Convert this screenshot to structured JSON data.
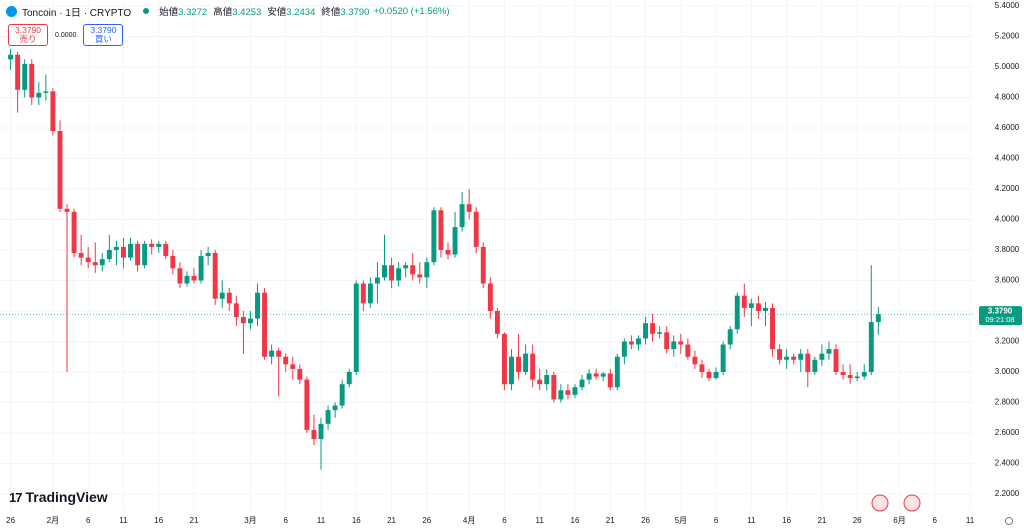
{
  "header": {
    "symbol": "Toncoin · 1日 · CRYPTO",
    "ohlc": [
      {
        "label": "始値",
        "value": "3.3272"
      },
      {
        "label": "高値",
        "value": "3.4253"
      },
      {
        "label": "安値",
        "value": "3.2434"
      },
      {
        "label": "終値",
        "value": "3.3790"
      }
    ],
    "change": "+0.0520 (+1.56%)"
  },
  "trade_buttons": {
    "sell": {
      "price": "3.3790",
      "label": "売り"
    },
    "spread": "0.0000",
    "buy": {
      "price": "3.3790",
      "label": "買い"
    }
  },
  "brand": "TradingView",
  "chart_data": {
    "type": "candlestick",
    "colors": {
      "up": "#089981",
      "down": "#f23645"
    },
    "x": [
      0,
      1,
      2,
      3,
      4,
      5,
      6,
      7,
      8,
      9,
      10,
      11,
      12,
      13,
      14,
      15,
      16,
      17,
      18,
      19,
      20,
      21,
      22,
      23,
      24,
      25,
      26,
      27,
      28,
      29,
      30,
      31,
      32,
      33,
      34,
      35,
      36,
      37,
      38,
      39,
      40,
      41,
      42,
      43,
      44,
      45,
      46,
      47,
      48,
      49,
      50,
      51,
      52,
      53,
      54,
      55,
      56,
      57,
      58,
      59,
      60,
      61,
      62,
      63,
      64,
      65,
      66,
      67,
      68,
      69,
      70,
      71,
      72,
      73,
      74,
      75,
      76,
      77,
      78,
      79,
      80,
      81,
      82,
      83,
      84,
      85,
      86,
      87,
      88,
      89,
      90,
      91,
      92,
      93,
      94,
      95,
      96,
      97,
      98,
      99,
      100,
      101,
      102,
      103,
      104,
      105,
      106,
      107,
      108,
      109,
      110,
      111,
      112,
      113,
      114,
      115,
      116,
      117,
      118,
      119,
      120,
      121,
      122,
      123
    ],
    "open": [
      5.05,
      5.08,
      4.85,
      5.02,
      4.8,
      4.83,
      4.84,
      4.58,
      4.07,
      4.05,
      3.78,
      3.75,
      3.72,
      3.7,
      3.74,
      3.8,
      3.82,
      3.75,
      3.84,
      3.7,
      3.84,
      3.82,
      3.84,
      3.76,
      3.68,
      3.58,
      3.63,
      3.6,
      3.76,
      3.78,
      3.48,
      3.52,
      3.45,
      3.36,
      3.32,
      3.35,
      3.52,
      3.1,
      3.14,
      3.1,
      3.05,
      3.02,
      2.95,
      2.62,
      2.56,
      2.66,
      2.75,
      2.78,
      2.92,
      3.0,
      3.58,
      3.45,
      3.58,
      3.62,
      3.7,
      3.6,
      3.68,
      3.7,
      3.64,
      3.62,
      3.72,
      4.06,
      3.8,
      3.77,
      3.95,
      4.1,
      4.05,
      3.82,
      3.58,
      3.4,
      3.25,
      2.92,
      3.1,
      3.0,
      3.12,
      2.95,
      2.92,
      2.98,
      2.82,
      2.88,
      2.85,
      2.9,
      2.95,
      2.99,
      2.97,
      2.99,
      2.9,
      3.1,
      3.2,
      3.18,
      3.22,
      3.32,
      3.25,
      3.26,
      3.15,
      3.2,
      3.18,
      3.1,
      3.05,
      3.0,
      2.96,
      3.0,
      3.18,
      3.28,
      3.5,
      3.42,
      3.45,
      3.4,
      3.42,
      3.15,
      3.08,
      3.1,
      3.08,
      3.12,
      3.0,
      3.08,
      3.12,
      3.15,
      3.0,
      2.98,
      2.96,
      2.97,
      3.0,
      3.3272
    ],
    "high": [
      5.12,
      5.1,
      5.05,
      5.05,
      4.9,
      4.95,
      4.86,
      4.65,
      4.1,
      4.07,
      3.9,
      3.82,
      3.85,
      3.78,
      3.9,
      3.86,
      3.88,
      3.88,
      3.86,
      3.86,
      3.87,
      3.86,
      3.86,
      3.8,
      3.72,
      3.66,
      3.68,
      3.8,
      3.82,
      3.8,
      3.6,
      3.55,
      3.5,
      3.4,
      3.4,
      3.58,
      3.55,
      3.18,
      3.16,
      3.12,
      3.1,
      3.05,
      2.97,
      2.72,
      2.7,
      2.78,
      2.8,
      2.95,
      3.02,
      3.6,
      3.6,
      3.62,
      3.72,
      3.9,
      3.75,
      3.72,
      3.72,
      3.78,
      3.72,
      3.75,
      4.08,
      4.08,
      3.85,
      4.05,
      4.18,
      4.2,
      4.08,
      3.85,
      3.62,
      3.42,
      3.26,
      3.15,
      3.25,
      3.18,
      3.18,
      3.02,
      3.02,
      3.0,
      2.92,
      2.92,
      2.92,
      2.98,
      3.02,
      3.02,
      3.0,
      3.02,
      3.12,
      3.22,
      3.24,
      3.24,
      3.36,
      3.38,
      3.3,
      3.3,
      3.24,
      3.25,
      3.22,
      3.14,
      3.08,
      3.02,
      3.03,
      3.2,
      3.3,
      3.52,
      3.58,
      3.48,
      3.5,
      3.46,
      3.45,
      3.18,
      3.15,
      3.12,
      3.15,
      3.15,
      3.1,
      3.18,
      3.2,
      3.18,
      3.05,
      3.05,
      3.0,
      3.05,
      3.7,
      3.4253
    ],
    "low": [
      4.98,
      4.7,
      4.8,
      4.75,
      4.75,
      4.78,
      4.55,
      4.05,
      3.0,
      3.75,
      3.7,
      3.68,
      3.65,
      3.66,
      3.72,
      3.7,
      3.68,
      3.73,
      3.66,
      3.68,
      3.77,
      3.78,
      3.74,
      3.64,
      3.55,
      3.56,
      3.58,
      3.58,
      3.7,
      3.44,
      3.42,
      3.4,
      3.3,
      3.12,
      3.28,
      3.3,
      3.08,
      3.05,
      2.84,
      3.0,
      2.95,
      2.92,
      2.6,
      2.52,
      2.36,
      2.62,
      2.7,
      2.76,
      2.9,
      2.98,
      3.4,
      3.42,
      3.45,
      3.6,
      3.55,
      3.56,
      3.62,
      3.6,
      3.58,
      3.55,
      3.7,
      3.75,
      3.74,
      3.75,
      3.92,
      4.0,
      3.78,
      3.55,
      3.35,
      3.22,
      2.88,
      2.88,
      2.95,
      2.98,
      2.9,
      2.88,
      2.88,
      2.8,
      2.8,
      2.82,
      2.83,
      2.88,
      2.92,
      2.95,
      2.94,
      2.88,
      2.88,
      3.05,
      3.15,
      3.14,
      3.18,
      3.2,
      3.22,
      3.12,
      3.1,
      3.12,
      3.08,
      3.02,
      2.96,
      2.94,
      2.95,
      2.98,
      3.15,
      3.25,
      3.36,
      3.3,
      3.35,
      3.3,
      3.1,
      3.05,
      3.02,
      3.05,
      3.0,
      2.9,
      2.98,
      3.04,
      3.08,
      2.98,
      2.95,
      2.92,
      2.94,
      2.95,
      2.98,
      3.2434
    ],
    "close": [
      5.08,
      4.85,
      5.02,
      4.8,
      4.83,
      4.84,
      4.58,
      4.07,
      4.05,
      3.78,
      3.75,
      3.72,
      3.7,
      3.74,
      3.8,
      3.82,
      3.75,
      3.84,
      3.7,
      3.84,
      3.82,
      3.84,
      3.76,
      3.68,
      3.58,
      3.63,
      3.6,
      3.76,
      3.78,
      3.48,
      3.52,
      3.45,
      3.36,
      3.32,
      3.35,
      3.52,
      3.1,
      3.14,
      3.1,
      3.05,
      3.02,
      2.95,
      2.62,
      2.56,
      2.66,
      2.75,
      2.78,
      2.92,
      3.0,
      3.58,
      3.45,
      3.58,
      3.62,
      3.7,
      3.6,
      3.68,
      3.7,
      3.64,
      3.62,
      3.72,
      4.06,
      3.8,
      3.77,
      3.95,
      4.1,
      4.05,
      3.82,
      3.58,
      3.4,
      3.25,
      2.92,
      3.1,
      3.0,
      3.12,
      2.95,
      2.92,
      2.98,
      2.82,
      2.88,
      2.85,
      2.9,
      2.95,
      2.99,
      2.97,
      2.99,
      2.9,
      3.1,
      3.2,
      3.18,
      3.22,
      3.32,
      3.25,
      3.26,
      3.15,
      3.2,
      3.18,
      3.1,
      3.05,
      3.0,
      2.96,
      3.0,
      3.18,
      3.28,
      3.5,
      3.42,
      3.45,
      3.4,
      3.42,
      3.15,
      3.08,
      3.1,
      3.08,
      3.12,
      3.0,
      3.08,
      3.12,
      3.15,
      3.0,
      2.98,
      2.96,
      2.97,
      3.0,
      3.3272,
      3.379
    ],
    "xlim": [
      -1.5,
      136.7
    ],
    "xticks": [
      {
        "value": 0,
        "label": "26"
      },
      {
        "value": 6,
        "label": "2月"
      },
      {
        "value": 11,
        "label": "6"
      },
      {
        "value": 16,
        "label": "11"
      },
      {
        "value": 21,
        "label": "16"
      },
      {
        "value": 26,
        "label": "21"
      },
      {
        "value": 34,
        "label": "3月"
      },
      {
        "value": 39,
        "label": "6"
      },
      {
        "value": 44,
        "label": "11"
      },
      {
        "value": 49,
        "label": "16"
      },
      {
        "value": 54,
        "label": "21"
      },
      {
        "value": 59,
        "label": "26"
      },
      {
        "value": 65,
        "label": "4月"
      },
      {
        "value": 70,
        "label": "6"
      },
      {
        "value": 75,
        "label": "11"
      },
      {
        "value": 80,
        "label": "16"
      },
      {
        "value": 85,
        "label": "21"
      },
      {
        "value": 90,
        "label": "26"
      },
      {
        "value": 95,
        "label": "5月"
      },
      {
        "value": 100,
        "label": "6"
      },
      {
        "value": 105,
        "label": "11"
      },
      {
        "value": 110,
        "label": "16"
      },
      {
        "value": 115,
        "label": "21"
      },
      {
        "value": 120,
        "label": "26"
      },
      {
        "value": 126,
        "label": "6月"
      },
      {
        "value": 131,
        "label": "6"
      },
      {
        "value": 136,
        "label": "11"
      }
    ],
    "ylim": [
      2.095,
      5.439
    ],
    "yticks": [
      {
        "value": 2.2,
        "label": "2.2000"
      },
      {
        "value": 2.4,
        "label": "2.4000"
      },
      {
        "value": 2.6,
        "label": "2.6000"
      },
      {
        "value": 2.8,
        "label": "2.8000"
      },
      {
        "value": 3.0,
        "label": "3.0000"
      },
      {
        "value": 3.2,
        "label": "3.2000"
      },
      {
        "value": 3.4,
        "label": "3.4000"
      },
      {
        "value": 3.6,
        "label": "3.6000"
      },
      {
        "value": 3.8,
        "label": "3.8000"
      },
      {
        "value": 4.0,
        "label": "4.0000"
      },
      {
        "value": 4.2,
        "label": "4.2000"
      },
      {
        "value": 4.4,
        "label": "4.4000"
      },
      {
        "value": 4.6,
        "label": "4.6000"
      },
      {
        "value": 4.8,
        "label": "4.8000"
      },
      {
        "value": 5.0,
        "label": "5.0000"
      },
      {
        "value": 5.2,
        "label": "5.2000"
      },
      {
        "value": 5.4,
        "label": "5.4000"
      }
    ],
    "price_label": {
      "value": 3.379,
      "label": "3.3790"
    },
    "countdown": "09:21:08"
  }
}
